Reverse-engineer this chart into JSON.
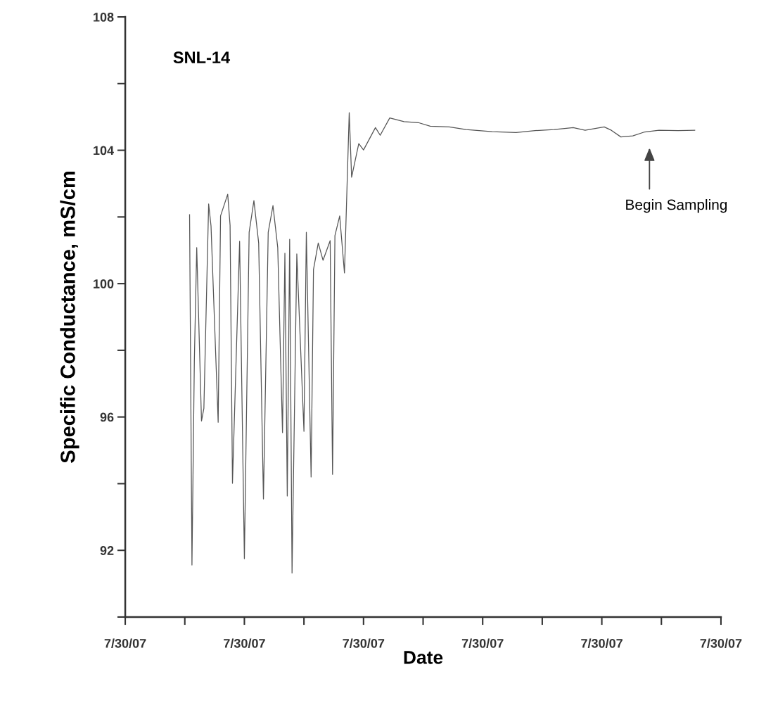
{
  "chart_data": {
    "type": "line",
    "xlabel": "Date",
    "ylabel": "Specific Conductance, mS/cm",
    "annotations": [
      "SNL-14",
      "Begin Sampling"
    ],
    "categories": [
      "7/30/07",
      null,
      null,
      null,
      null,
      null,
      null,
      null,
      null,
      null,
      null,
      null,
      null,
      null,
      null,
      null,
      null,
      null,
      null,
      null,
      null,
      null,
      null,
      null,
      null,
      null,
      null,
      null,
      null,
      null,
      null,
      null,
      null,
      null,
      null,
      null,
      null,
      null,
      null,
      null,
      null,
      null,
      null,
      null,
      null,
      null,
      null,
      null,
      null,
      null,
      "7/30/07",
      null,
      null,
      null,
      null,
      null,
      null,
      null,
      null,
      null,
      null,
      null,
      null,
      null,
      null,
      null,
      null,
      null,
      null,
      null,
      null,
      null,
      null,
      null,
      null,
      null,
      null,
      null,
      null,
      null,
      null,
      null,
      null,
      null,
      null,
      null,
      null,
      null,
      null,
      null,
      null,
      null,
      null,
      null,
      null,
      null,
      null,
      null,
      null,
      null,
      "7/30/07",
      null,
      null,
      null,
      null,
      null,
      null,
      null,
      null,
      null,
      null,
      null,
      null,
      null,
      null,
      null,
      null,
      null,
      null,
      null,
      null,
      null,
      null,
      null,
      null,
      null,
      null,
      null,
      null,
      null,
      null,
      null,
      null,
      null,
      null,
      null,
      null,
      null,
      null,
      null,
      null,
      null,
      null,
      null,
      null,
      null,
      null,
      null,
      null,
      null,
      "7/30/07",
      null,
      null,
      null,
      null,
      null,
      null,
      null,
      null,
      null,
      null,
      null,
      null,
      null,
      null,
      null,
      null,
      null,
      null,
      null,
      null,
      null,
      null,
      null,
      null,
      null,
      null,
      null,
      null,
      null,
      null,
      null,
      null,
      null,
      null,
      null,
      null,
      null,
      null,
      null,
      null,
      null,
      null,
      null,
      null,
      null,
      null,
      null,
      null,
      null,
      "7/30/07",
      null,
      null,
      null,
      null,
      null,
      null,
      null,
      null,
      null,
      null,
      null,
      null,
      null,
      null,
      null,
      null,
      null,
      null,
      null,
      null,
      null,
      null,
      null,
      null,
      null,
      null,
      null,
      null,
      null,
      null,
      null,
      null,
      null,
      null,
      null,
      null,
      null,
      null,
      null,
      null,
      null,
      null,
      null,
      null,
      null,
      null,
      null,
      null,
      null,
      "7/30/07"
    ],
    "series": [
      {
        "color": "#555555",
        "values": [
          null,
          null,
          null,
          null,
          null,
          null,
          null,
          null,
          null,
          null,
          null,
          null,
          null,
          null,
          null,
          null,
          null,
          null,
          null,
          null,
          null,
          null,
          null,
          null,
          null,
          null,
          null,
          102.07,
          91.56,
          97.68,
          101.08,
          null,
          95.88,
          96.26,
          null,
          102.39,
          101.73,
          null,
          null,
          95.84,
          102.03,
          null,
          null,
          102.68,
          101.75,
          94.01,
          null,
          null,
          101.27,
          null,
          91.75,
          null,
          101.54,
          null,
          102.49,
          null,
          101.22,
          null,
          93.54,
          null,
          101.54,
          null,
          102.34,
          null,
          101.08,
          null,
          95.53,
          100.91,
          93.63,
          101.33,
          91.32,
          null,
          100.89,
          null,
          null,
          95.57,
          101.54,
          null,
          94.2,
          100.42,
          null,
          101.22,
          null,
          100.7,
          null,
          null,
          101.29,
          94.28,
          101.44,
          null,
          102.03,
          null,
          100.32,
          null,
          105.13,
          103.19,
          null,
          null,
          104.2,
          null,
          104.01,
          null,
          null,
          null,
          null,
          104.68,
          null,
          104.45,
          null,
          null,
          null,
          104.97,
          null,
          null,
          null,
          null,
          null,
          104.86,
          null,
          null,
          null,
          null,
          null,
          104.83,
          null,
          null,
          null,
          null,
          104.72,
          null,
          null,
          null,
          null,
          null,
          null,
          null,
          104.7,
          null,
          null,
          null,
          null,
          null,
          null,
          104.62,
          null,
          null,
          null,
          null,
          null,
          null,
          null,
          null,
          null,
          null,
          104.56,
          null,
          null,
          null,
          null,
          null,
          null,
          null,
          null,
          null,
          104.53,
          null,
          null,
          null,
          null,
          null,
          null,
          null,
          104.59,
          null,
          null,
          null,
          null,
          null,
          null,
          null,
          104.62,
          null,
          null,
          null,
          null,
          null,
          null,
          null,
          104.68,
          null,
          null,
          null,
          null,
          104.6,
          null,
          null,
          null,
          null,
          null,
          null,
          null,
          104.7,
          null,
          null,
          104.6,
          null,
          null,
          null,
          104.4,
          null,
          null,
          null,
          null,
          104.43,
          null,
          null,
          null,
          null,
          104.55,
          null,
          null,
          null,
          null,
          null,
          104.6,
          null,
          null,
          null,
          null,
          null,
          null,
          null,
          104.59,
          null,
          null,
          null,
          null,
          null,
          null,
          104.6,
          null,
          null,
          null,
          null,
          null,
          null,
          null,
          null,
          null,
          null,
          null
        ]
      }
    ],
    "ylim": [
      90,
      108
    ],
    "yticks": [
      {
        "value": 90,
        "label": null
      },
      92,
      {
        "value": 94,
        "label": null
      },
      96,
      {
        "value": 98,
        "label": null
      },
      100,
      {
        "value": 102,
        "label": null
      },
      104,
      {
        "value": 106,
        "label": null
      },
      108
    ],
    "grid": false,
    "legend": false,
    "marker": "none",
    "line_style": "solid"
  }
}
